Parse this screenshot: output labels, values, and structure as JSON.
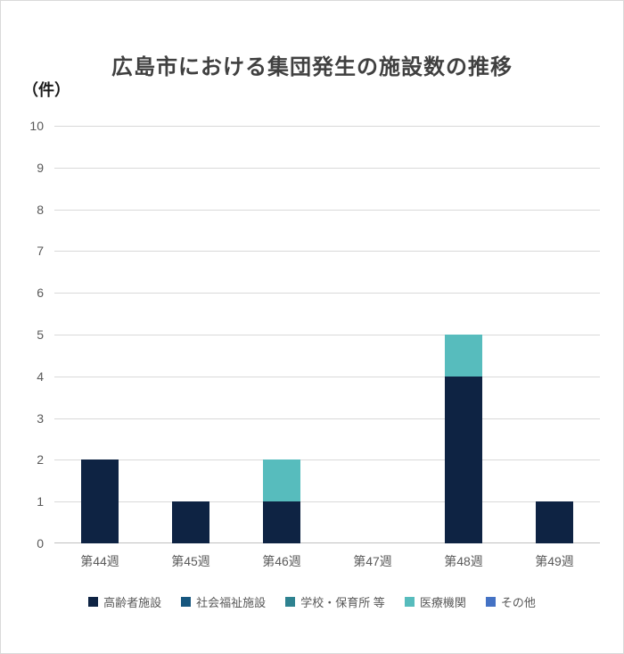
{
  "chart_data": {
    "type": "bar",
    "stacked": true,
    "title": "広島市における集団発生の施設数の推移",
    "xlabel": "",
    "ylabel": "（件）",
    "categories": [
      "第44週",
      "第45週",
      "第46週",
      "第47週",
      "第48週",
      "第49週"
    ],
    "series": [
      {
        "name": "高齢者施設",
        "color": "#0E2343",
        "values": [
          2,
          1,
          1,
          0,
          4,
          1
        ]
      },
      {
        "name": "社会福祉施設",
        "color": "#16567E",
        "values": [
          0,
          0,
          0,
          0,
          0,
          0
        ]
      },
      {
        "name": "学校・保育所 等",
        "color": "#2E8290",
        "values": [
          0,
          0,
          0,
          0,
          0,
          0
        ]
      },
      {
        "name": "医療機関",
        "color": "#57BCBD",
        "values": [
          0,
          0,
          1,
          0,
          1,
          0
        ]
      },
      {
        "name": "その他",
        "color": "#4472C4",
        "values": [
          0,
          0,
          0,
          0,
          0,
          0
        ]
      }
    ],
    "ylim": [
      0,
      10
    ],
    "yticks": [
      0,
      1,
      2,
      3,
      4,
      5,
      6,
      7,
      8,
      9,
      10
    ],
    "grid": true,
    "legend_position": "bottom"
  },
  "style": {
    "title_color": "#404040",
    "axis_text_color": "#595959",
    "gridline_color": "#D9D9D9",
    "frame_border_color": "#D9D9D9"
  }
}
